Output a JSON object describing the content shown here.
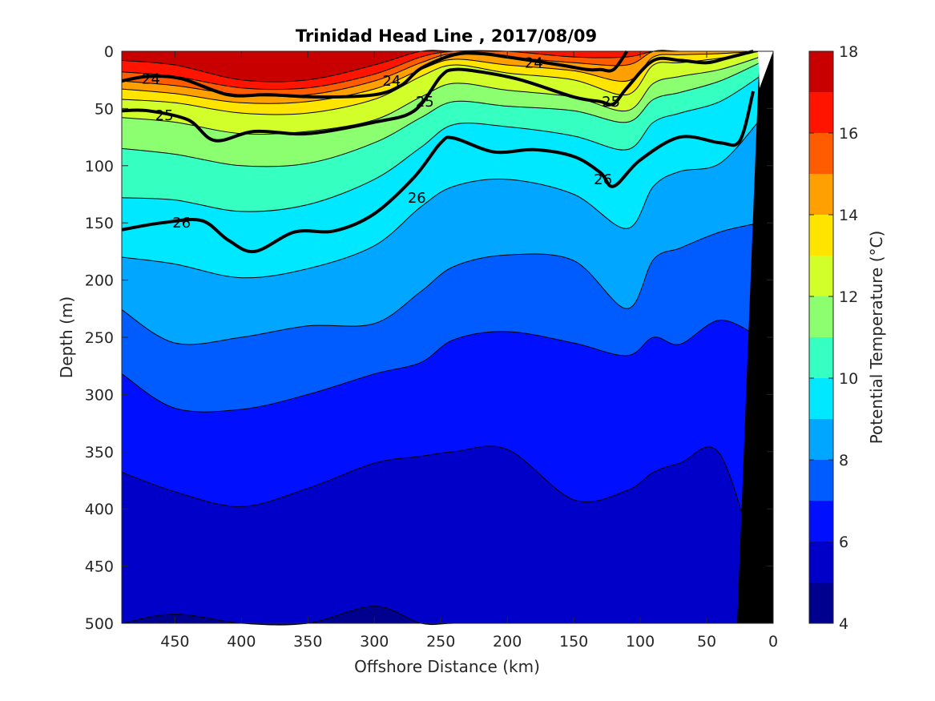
{
  "chart_data": {
    "type": "heatmap",
    "title": "Trinidad Head Line , 2017/08/09",
    "xlabel": "Offshore Distance (km)",
    "ylabel": "Depth (m)",
    "xlim": [
      490,
      0
    ],
    "ylim": [
      0,
      500
    ],
    "x_reversed": true,
    "y_reversed": true,
    "x_ticks": [
      450,
      400,
      350,
      300,
      250,
      200,
      150,
      100,
      50,
      0
    ],
    "y_ticks": [
      0,
      50,
      100,
      150,
      200,
      250,
      300,
      350,
      400,
      450,
      500
    ],
    "colorbar": {
      "label": "Potential Temperature (°C)",
      "range": [
        4,
        18
      ],
      "ticks": [
        4,
        6,
        8,
        10,
        12,
        14,
        16,
        18
      ],
      "levels": [
        4,
        5,
        6,
        7,
        8,
        9,
        10,
        11,
        12,
        13,
        14,
        15,
        16,
        17,
        18
      ],
      "colors": [
        "#00008f",
        "#0000c8",
        "#0010ff",
        "#005cff",
        "#00a6ff",
        "#00e8ff",
        "#36ffc2",
        "#8cff70",
        "#d2ff2a",
        "#ffe400",
        "#ffa000",
        "#ff5c00",
        "#ff1400",
        "#c80000"
      ]
    },
    "temperature_isotherm_depths": [
      {
        "level": 17,
        "x": [
          490,
          450,
          400,
          350,
          300,
          265,
          240,
          200,
          150,
          110,
          90,
          70,
          40,
          10
        ],
        "depth": [
          8,
          12,
          25,
          25,
          12,
          0,
          0,
          0,
          0,
          0,
          0,
          0,
          0,
          0
        ]
      },
      {
        "level": 16,
        "x": [
          490,
          450,
          400,
          350,
          300,
          265,
          240,
          200,
          150,
          110,
          90,
          70,
          40,
          10
        ],
        "depth": [
          18,
          22,
          32,
          32,
          20,
          5,
          0,
          0,
          5,
          5,
          0,
          0,
          0,
          0
        ]
      },
      {
        "level": 15,
        "x": [
          490,
          450,
          400,
          350,
          300,
          265,
          240,
          200,
          150,
          110,
          90,
          70,
          40,
          10
        ],
        "depth": [
          26,
          30,
          38,
          38,
          26,
          10,
          2,
          5,
          10,
          12,
          0,
          0,
          0,
          0
        ]
      },
      {
        "level": 14,
        "x": [
          490,
          450,
          400,
          350,
          300,
          265,
          240,
          200,
          150,
          110,
          90,
          70,
          40,
          10
        ],
        "depth": [
          33,
          37,
          45,
          44,
          33,
          16,
          7,
          12,
          17,
          26,
          5,
          3,
          2,
          0
        ]
      },
      {
        "level": 13,
        "x": [
          490,
          450,
          400,
          350,
          300,
          265,
          240,
          200,
          150,
          110,
          90,
          70,
          40,
          10
        ],
        "depth": [
          42,
          45,
          54,
          54,
          42,
          22,
          12,
          19,
          25,
          38,
          12,
          10,
          6,
          0
        ]
      },
      {
        "level": 12,
        "x": [
          490,
          450,
          400,
          350,
          300,
          265,
          240,
          200,
          150,
          110,
          90,
          70,
          40,
          10
        ],
        "depth": [
          58,
          62,
          72,
          70,
          60,
          40,
          28,
          34,
          40,
          52,
          28,
          22,
          16,
          5
        ]
      },
      {
        "level": 11,
        "x": [
          490,
          450,
          400,
          350,
          300,
          265,
          240,
          200,
          150,
          110,
          90,
          70,
          40,
          10
        ],
        "depth": [
          85,
          90,
          100,
          98,
          80,
          58,
          44,
          48,
          52,
          62,
          42,
          36,
          26,
          10
        ]
      },
      {
        "level": 10,
        "x": [
          490,
          450,
          400,
          350,
          300,
          265,
          240,
          200,
          150,
          110,
          90,
          70,
          40,
          10
        ],
        "depth": [
          128,
          130,
          140,
          134,
          112,
          84,
          64,
          66,
          74,
          86,
          62,
          54,
          44,
          22
        ]
      },
      {
        "level": 9,
        "x": [
          490,
          450,
          400,
          350,
          300,
          265,
          240,
          200,
          150,
          110,
          90,
          70,
          40,
          10
        ],
        "depth": [
          180,
          186,
          198,
          190,
          170,
          136,
          118,
          112,
          125,
          155,
          118,
          105,
          98,
          60
        ]
      },
      {
        "level": 8,
        "x": [
          490,
          450,
          400,
          350,
          300,
          265,
          240,
          200,
          150,
          110,
          90,
          70,
          40,
          10
        ],
        "depth": [
          226,
          255,
          250,
          240,
          238,
          210,
          188,
          178,
          183,
          225,
          182,
          172,
          158,
          150
        ]
      },
      {
        "level": 7,
        "x": [
          490,
          450,
          400,
          350,
          300,
          265,
          240,
          200,
          150,
          110,
          90,
          70,
          40,
          10
        ],
        "depth": [
          282,
          312,
          313,
          300,
          282,
          272,
          252,
          245,
          255,
          266,
          250,
          256,
          235,
          250
        ]
      },
      {
        "level": 6,
        "x": [
          490,
          450,
          400,
          350,
          300,
          265,
          240,
          200,
          150,
          110,
          90,
          70,
          40,
          10
        ],
        "depth": [
          368,
          385,
          398,
          382,
          360,
          354,
          350,
          348,
          392,
          384,
          368,
          360,
          352,
          460
        ]
      },
      {
        "level": 5,
        "x": [
          490,
          450,
          400,
          350,
          300,
          265,
          240,
          200,
          150,
          110,
          90,
          70,
          40,
          10
        ],
        "depth": [
          500,
          492,
          500,
          500,
          485,
          500,
          500,
          500,
          500,
          500,
          500,
          500,
          500,
          500
        ]
      }
    ],
    "isopycnals": [
      {
        "label": "24",
        "x": [
          490,
          470,
          445,
          410,
          380,
          340,
          300,
          280,
          265,
          240,
          220,
          200,
          160,
          140,
          130,
          120,
          110
        ],
        "depth": [
          26,
          22,
          24,
          38,
          38,
          40,
          38,
          30,
          15,
          3,
          2,
          5,
          12,
          16,
          16,
          16,
          0
        ]
      },
      {
        "label": "25",
        "x": [
          490,
          470,
          440,
          420,
          390,
          350,
          300,
          270,
          250,
          240,
          220,
          190,
          150,
          130,
          120,
          110,
          90,
          70,
          50,
          35,
          15
        ],
        "depth": [
          52,
          52,
          60,
          78,
          70,
          72,
          62,
          52,
          22,
          16,
          18,
          25,
          40,
          44,
          46,
          32,
          8,
          8,
          10,
          6,
          0
        ]
      },
      {
        "label": "26",
        "x": [
          490,
          460,
          430,
          410,
          390,
          360,
          330,
          300,
          270,
          250,
          240,
          210,
          180,
          150,
          130,
          120,
          100,
          70,
          40,
          25,
          15
        ],
        "depth": [
          156,
          150,
          148,
          165,
          175,
          158,
          157,
          142,
          110,
          80,
          76,
          88,
          86,
          92,
          106,
          118,
          95,
          75,
          80,
          78,
          35
        ]
      }
    ],
    "annotations": [
      "24",
      "24",
      "24",
      "25",
      "25",
      "25",
      "26",
      "26",
      "26"
    ]
  }
}
